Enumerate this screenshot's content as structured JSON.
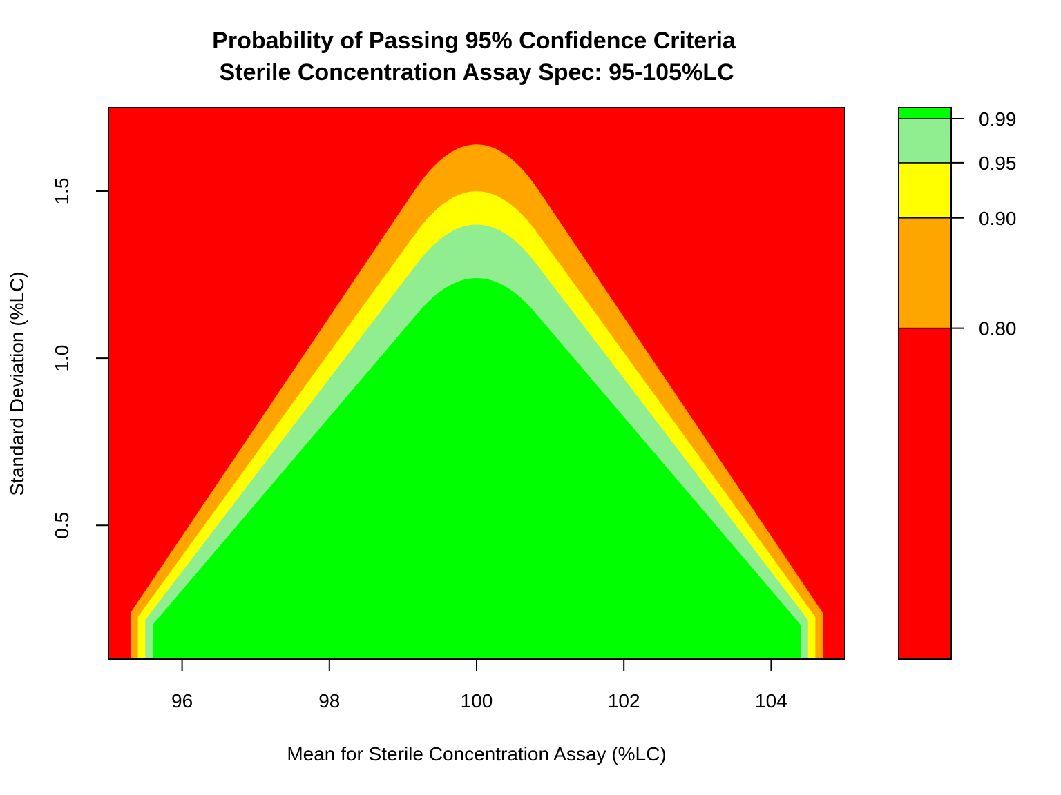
{
  "chart_data": {
    "type": "contour",
    "title": "Probability of Passing 95% Confidence Criteria",
    "subtitle": "Sterile Concentration Assay Spec: 95-105%LC",
    "xlabel": "Mean for Sterile Concentration Assay (%LC)",
    "ylabel": "Standard Deviation (%LC)",
    "xlim": [
      95,
      105
    ],
    "ylim": [
      0.1,
      1.75
    ],
    "x_ticks": [
      "96",
      "98",
      "100",
      "102",
      "104"
    ],
    "y_ticks": [
      "0.5",
      "1.0",
      "1.5"
    ],
    "legend_position": "right",
    "levels": [
      {
        "label": "0.80",
        "value": 0.8,
        "color": "#ff0000"
      },
      {
        "label": "0.90",
        "value": 0.9,
        "color": "#ffa500"
      },
      {
        "label": "0.95",
        "value": 0.95,
        "color": "#ffff00"
      },
      {
        "label": "0.99",
        "value": 0.99,
        "color": "#90ee90"
      }
    ],
    "top_color": "#00ff00",
    "region_peaks": [
      {
        "region": "0.80 to 0.90",
        "peak_x": 100,
        "peak_sd": 1.64,
        "base_x": [
          95.3,
          104.7
        ]
      },
      {
        "region": "0.90 to 0.95",
        "peak_x": 100,
        "peak_sd": 1.5,
        "base_x": [
          95.4,
          104.6
        ]
      },
      {
        "region": "0.95 to 0.99",
        "peak_x": 100,
        "peak_sd": 1.4,
        "base_x": [
          95.5,
          104.5
        ]
      },
      {
        "region": "above 0.99",
        "peak_x": 100,
        "peak_sd": 1.24,
        "base_x": [
          95.6,
          104.4
        ]
      }
    ],
    "colorbar_range": [
      0.5,
      1.0
    ]
  }
}
